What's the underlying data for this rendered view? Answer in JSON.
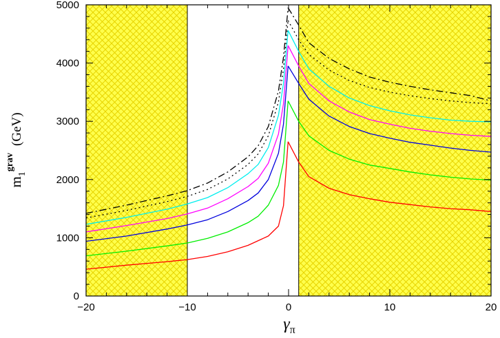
{
  "chart_data": {
    "type": "line",
    "xlim": [
      -20,
      20
    ],
    "ylim": [
      0,
      5000
    ],
    "x_ticks": [
      -20,
      -10,
      0,
      10,
      20
    ],
    "x_tick_labels": [
      "−20",
      "−10",
      "0",
      "10",
      "20"
    ],
    "y_ticks": [
      0,
      1000,
      2000,
      3000,
      4000,
      5000
    ],
    "y_tick_labels": [
      "0",
      "1000",
      "2000",
      "3000",
      "4000",
      "5000"
    ],
    "xlabel": {
      "main": "γ",
      "sub": "π"
    },
    "ylabel": {
      "main": "m",
      "sub": "1",
      "sup": "grav",
      "units": "(GeV)"
    },
    "excluded_regions": [
      {
        "x_from": -20,
        "x_to": -10
      },
      {
        "x_from": 1,
        "x_to": 20
      }
    ],
    "shade_color": "#ffff4c",
    "hatch_color": "#e8d400",
    "series": [
      {
        "color": "#ff0000",
        "dash": "solid",
        "left": [
          [
            -20,
            460
          ],
          [
            -16,
            530
          ],
          [
            -12,
            590
          ],
          [
            -10,
            625
          ],
          [
            -8,
            680
          ],
          [
            -6,
            760
          ],
          [
            -4,
            870
          ],
          [
            -3,
            950
          ],
          [
            -2,
            1030
          ],
          [
            -1,
            1200
          ],
          [
            -0.5,
            1550
          ],
          [
            -0.05,
            2650
          ]
        ],
        "right": [
          [
            -0.05,
            2650
          ],
          [
            1,
            2300
          ],
          [
            2,
            2050
          ],
          [
            4,
            1850
          ],
          [
            6,
            1740
          ],
          [
            8,
            1670
          ],
          [
            10,
            1610
          ],
          [
            12,
            1570
          ],
          [
            14,
            1530
          ],
          [
            16,
            1500
          ],
          [
            18,
            1480
          ],
          [
            20,
            1450
          ]
        ]
      },
      {
        "color": "#00ee00",
        "dash": "solid",
        "left": [
          [
            -20,
            690
          ],
          [
            -16,
            770
          ],
          [
            -12,
            860
          ],
          [
            -10,
            910
          ],
          [
            -8,
            990
          ],
          [
            -6,
            1100
          ],
          [
            -4,
            1260
          ],
          [
            -3,
            1370
          ],
          [
            -2,
            1560
          ],
          [
            -1,
            1900
          ],
          [
            -0.5,
            2300
          ],
          [
            -0.05,
            3350
          ]
        ],
        "right": [
          [
            -0.05,
            3350
          ],
          [
            1,
            3000
          ],
          [
            2,
            2750
          ],
          [
            4,
            2500
          ],
          [
            6,
            2350
          ],
          [
            8,
            2250
          ],
          [
            10,
            2190
          ],
          [
            12,
            2130
          ],
          [
            14,
            2080
          ],
          [
            16,
            2040
          ],
          [
            18,
            2010
          ],
          [
            20,
            1990
          ]
        ]
      },
      {
        "color": "#0000dd",
        "dash": "solid",
        "left": [
          [
            -20,
            940
          ],
          [
            -16,
            1030
          ],
          [
            -12,
            1150
          ],
          [
            -10,
            1220
          ],
          [
            -8,
            1310
          ],
          [
            -6,
            1450
          ],
          [
            -4,
            1640
          ],
          [
            -3,
            1770
          ],
          [
            -2,
            2000
          ],
          [
            -1,
            2450
          ],
          [
            -0.5,
            2950
          ],
          [
            -0.05,
            3950
          ]
        ],
        "right": [
          [
            -0.05,
            3950
          ],
          [
            1,
            3650
          ],
          [
            2,
            3380
          ],
          [
            4,
            3090
          ],
          [
            6,
            2910
          ],
          [
            8,
            2790
          ],
          [
            10,
            2710
          ],
          [
            12,
            2640
          ],
          [
            14,
            2590
          ],
          [
            16,
            2540
          ],
          [
            18,
            2500
          ],
          [
            20,
            2470
          ]
        ]
      },
      {
        "color": "#ff00ff",
        "dash": "solid",
        "left": [
          [
            -20,
            1100
          ],
          [
            -16,
            1210
          ],
          [
            -12,
            1330
          ],
          [
            -10,
            1410
          ],
          [
            -8,
            1510
          ],
          [
            -6,
            1670
          ],
          [
            -4,
            1880
          ],
          [
            -3,
            2020
          ],
          [
            -2,
            2280
          ],
          [
            -1,
            2780
          ],
          [
            -0.5,
            3300
          ],
          [
            -0.05,
            4300
          ]
        ],
        "right": [
          [
            -0.05,
            4300
          ],
          [
            1,
            3950
          ],
          [
            2,
            3650
          ],
          [
            4,
            3350
          ],
          [
            6,
            3160
          ],
          [
            8,
            3030
          ],
          [
            10,
            2950
          ],
          [
            12,
            2880
          ],
          [
            14,
            2830
          ],
          [
            16,
            2790
          ],
          [
            18,
            2760
          ],
          [
            20,
            2740
          ]
        ]
      },
      {
        "color": "#00eeee",
        "dash": "solid",
        "left": [
          [
            -20,
            1230
          ],
          [
            -16,
            1350
          ],
          [
            -12,
            1490
          ],
          [
            -10,
            1580
          ],
          [
            -8,
            1690
          ],
          [
            -6,
            1860
          ],
          [
            -4,
            2100
          ],
          [
            -3,
            2260
          ],
          [
            -2,
            2550
          ],
          [
            -1,
            3100
          ],
          [
            -0.5,
            3650
          ],
          [
            -0.05,
            4560
          ]
        ],
        "right": [
          [
            -0.05,
            4560
          ],
          [
            1,
            4200
          ],
          [
            2,
            3900
          ],
          [
            4,
            3600
          ],
          [
            6,
            3400
          ],
          [
            8,
            3270
          ],
          [
            10,
            3180
          ],
          [
            12,
            3110
          ],
          [
            14,
            3060
          ],
          [
            16,
            3020
          ],
          [
            18,
            3000
          ],
          [
            20,
            2990
          ]
        ]
      },
      {
        "color": "#000000",
        "dash": "2,4",
        "left": [
          [
            -20,
            1340
          ],
          [
            -16,
            1470
          ],
          [
            -12,
            1620
          ],
          [
            -10,
            1710
          ],
          [
            -8,
            1830
          ],
          [
            -6,
            2010
          ],
          [
            -4,
            2260
          ],
          [
            -3,
            2440
          ],
          [
            -2,
            2750
          ],
          [
            -1,
            3330
          ],
          [
            -0.5,
            3900
          ],
          [
            -0.05,
            4730
          ]
        ],
        "right": [
          [
            -0.05,
            4730
          ],
          [
            1,
            4400
          ],
          [
            2,
            4150
          ],
          [
            4,
            3880
          ],
          [
            6,
            3700
          ],
          [
            8,
            3580
          ],
          [
            10,
            3500
          ],
          [
            12,
            3440
          ],
          [
            14,
            3390
          ],
          [
            16,
            3350
          ],
          [
            18,
            3320
          ],
          [
            20,
            3300
          ]
        ]
      },
      {
        "color": "#000000",
        "dash": "10,4,2,4",
        "left": [
          [
            -20,
            1420
          ],
          [
            -16,
            1560
          ],
          [
            -12,
            1720
          ],
          [
            -10,
            1810
          ],
          [
            -8,
            1940
          ],
          [
            -6,
            2130
          ],
          [
            -4,
            2390
          ],
          [
            -3,
            2580
          ],
          [
            -2,
            2910
          ],
          [
            -1,
            3520
          ],
          [
            -0.5,
            4100
          ],
          [
            -0.05,
            4950
          ]
        ],
        "right": [
          [
            -0.05,
            4950
          ],
          [
            1,
            4650
          ],
          [
            2,
            4350
          ],
          [
            4,
            4080
          ],
          [
            6,
            3900
          ],
          [
            8,
            3760
          ],
          [
            10,
            3670
          ],
          [
            12,
            3600
          ],
          [
            14,
            3540
          ],
          [
            16,
            3490
          ],
          [
            18,
            3440
          ],
          [
            20,
            3350
          ]
        ]
      }
    ]
  }
}
